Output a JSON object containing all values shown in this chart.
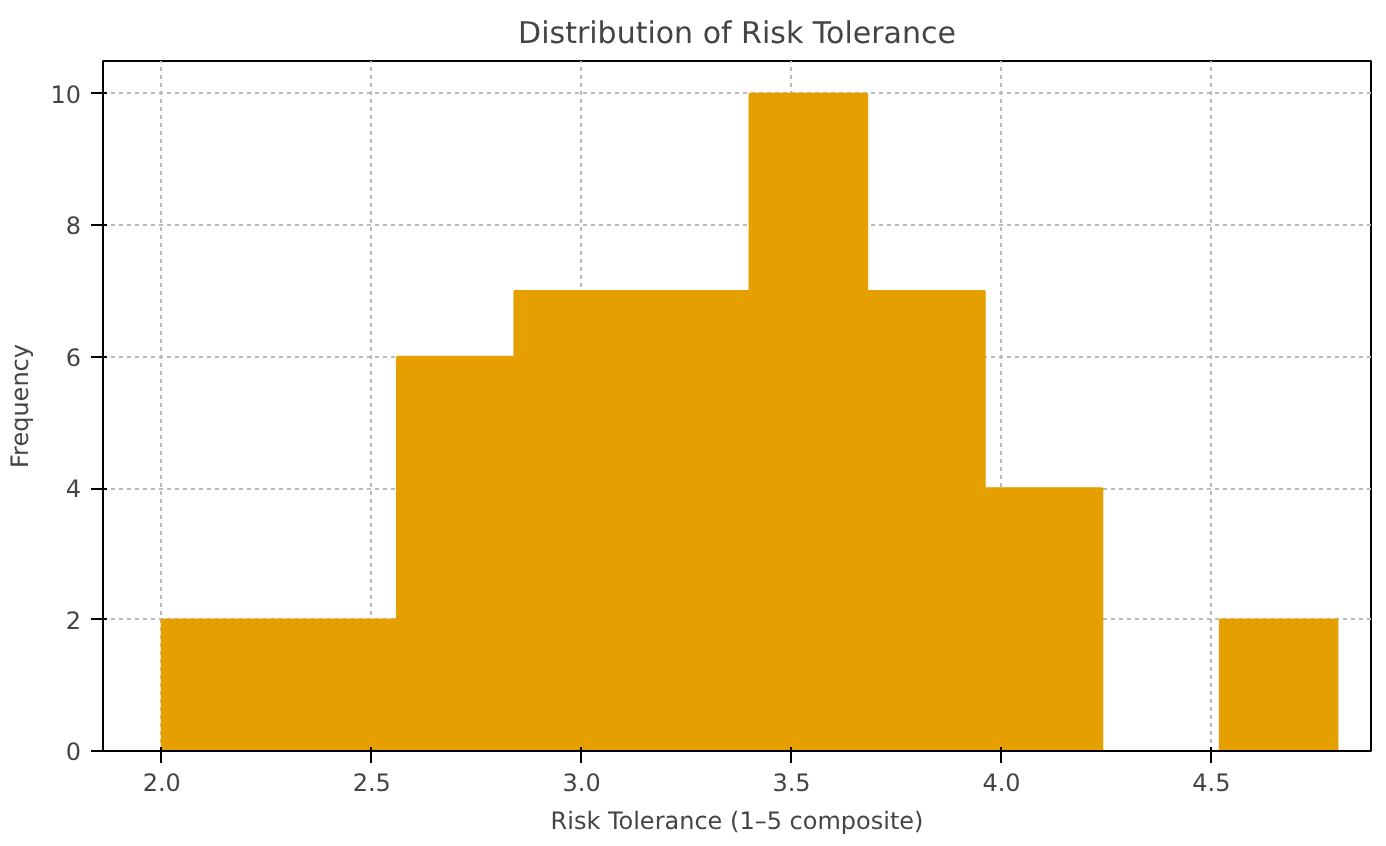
{
  "chart_data": {
    "type": "histogram",
    "title": "Distribution of Risk Tolerance",
    "xlabel": "Risk Tolerance (1–5 composite)",
    "ylabel": "Frequency",
    "bins": [
      2.0,
      2.28,
      2.56,
      2.84,
      3.12,
      3.4,
      3.68,
      3.96,
      4.24,
      4.52,
      4.8
    ],
    "values": [
      2,
      2,
      6,
      7,
      7,
      10,
      7,
      4,
      0,
      2
    ],
    "color": "#e5a000",
    "xlim": [
      1.86,
      4.88
    ],
    "ylim": [
      0,
      10.5
    ],
    "xticks": [
      {
        "value": 2.0,
        "label": "2.0"
      },
      {
        "value": 2.5,
        "label": "2.5"
      },
      {
        "value": 3.0,
        "label": "3.0"
      },
      {
        "value": 3.5,
        "label": "3.5"
      },
      {
        "value": 4.0,
        "label": "4.0"
      },
      {
        "value": 4.5,
        "label": "4.5"
      }
    ],
    "yticks": [
      0,
      2,
      4,
      6,
      8,
      10
    ],
    "grid": true
  }
}
